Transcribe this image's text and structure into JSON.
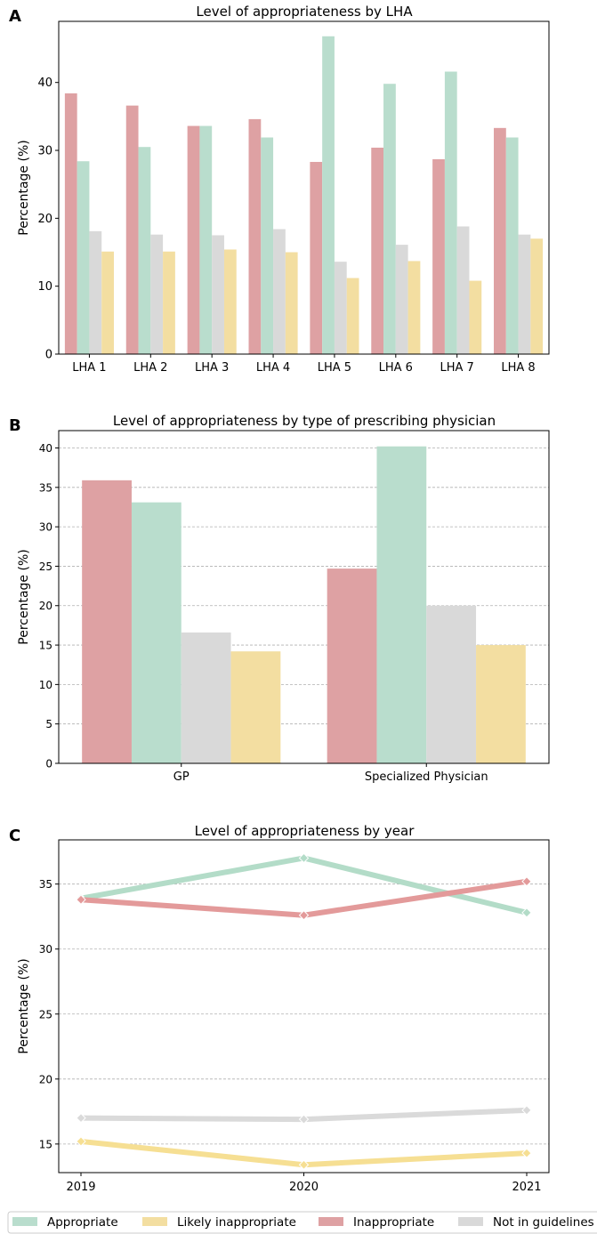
{
  "colors": {
    "Appropriate": "#b9ddcd",
    "Likely inappropriate": "#f3dea1",
    "Inappropriate": "#dea1a3",
    "Not in guidelines": "#d9d9d9",
    "line_Appropriate": "#b3dcc8",
    "line_Likely inappropriate": "#f6df93",
    "line_Inappropriate": "#e39a9a",
    "line_Not in guidelines": "#dadada"
  },
  "legend": [
    "Appropriate",
    "Likely inappropriate",
    "Inappropriate",
    "Not in guidelines"
  ],
  "chart_data": [
    {
      "panel_label": "A",
      "type": "bar",
      "title": "Level of appropriateness by LHA",
      "xlabel": "",
      "ylabel": "Percentage (%)",
      "ylim": [
        0,
        49
      ],
      "yticks": [
        0,
        10,
        20,
        30,
        40
      ],
      "grid": false,
      "categories": [
        "LHA 1",
        "LHA 2",
        "LHA 3",
        "LHA 4",
        "LHA 5",
        "LHA 6",
        "LHA 7",
        "LHA 8"
      ],
      "series": [
        {
          "name": "Inappropriate",
          "values": [
            38.4,
            36.6,
            33.6,
            34.6,
            28.3,
            30.4,
            28.7,
            33.3
          ]
        },
        {
          "name": "Appropriate",
          "values": [
            28.4,
            30.5,
            33.6,
            31.9,
            46.8,
            39.8,
            41.6,
            31.9
          ]
        },
        {
          "name": "Not in guidelines",
          "values": [
            18.1,
            17.6,
            17.5,
            18.4,
            13.6,
            16.1,
            18.8,
            17.6
          ]
        },
        {
          "name": "Likely inappropriate",
          "values": [
            15.1,
            15.1,
            15.4,
            15.0,
            11.2,
            13.7,
            10.8,
            17.0
          ]
        }
      ]
    },
    {
      "panel_label": "B",
      "type": "bar",
      "title": "Level of appropriateness by type of prescribing physician",
      "xlabel": "",
      "ylabel": "Percentage (%)",
      "ylim": [
        0,
        42.2
      ],
      "yticks": [
        0,
        5,
        10,
        15,
        20,
        25,
        30,
        35,
        40
      ],
      "grid": true,
      "categories": [
        "GP",
        "Specialized Physician"
      ],
      "series": [
        {
          "name": "Inappropriate",
          "values": [
            35.9,
            24.7
          ]
        },
        {
          "name": "Appropriate",
          "values": [
            33.1,
            40.2
          ]
        },
        {
          "name": "Not in guidelines",
          "values": [
            16.6,
            20.0
          ]
        },
        {
          "name": "Likely inappropriate",
          "values": [
            14.2,
            15.0
          ]
        }
      ]
    },
    {
      "panel_label": "C",
      "type": "line",
      "title": "Level of appropriateness by year",
      "xlabel": "",
      "ylabel": "Percentage (%)",
      "ylim": [
        12.8,
        38.4
      ],
      "yticks": [
        15,
        20,
        25,
        30,
        35
      ],
      "grid": true,
      "x": [
        "2019",
        "2020",
        "2021"
      ],
      "series": [
        {
          "name": "Appropriate",
          "values": [
            33.9,
            37.0,
            32.8
          ]
        },
        {
          "name": "Inappropriate",
          "values": [
            33.8,
            32.6,
            35.2
          ]
        },
        {
          "name": "Not in guidelines",
          "values": [
            17.0,
            16.9,
            17.6
          ]
        },
        {
          "name": "Likely inappropriate",
          "values": [
            15.2,
            13.4,
            14.3
          ]
        }
      ]
    }
  ]
}
